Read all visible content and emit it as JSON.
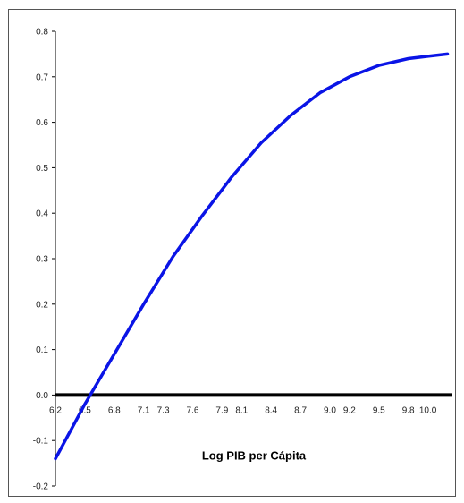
{
  "chart_data": {
    "type": "line",
    "title": "",
    "xlabel": "Log PIB per Cápita",
    "ylabel": "",
    "xlim": [
      6.2,
      10.25
    ],
    "ylim": [
      -0.2,
      0.8
    ],
    "y_ticks": [
      "0.8",
      "0.7",
      "0.6",
      "0.5",
      "0.4",
      "0.3",
      "0.2",
      "0.1",
      "0.0",
      "-0.1",
      "-0.2"
    ],
    "x_ticks": [
      "6.2",
      "6.5",
      "6.8",
      "7.1",
      "7.3",
      "7.6",
      "7.9",
      "8.1",
      "8.4",
      "8.7",
      "9.0",
      "9.2",
      "9.5",
      "9.8",
      "10.0"
    ],
    "grid": false,
    "legend": "none",
    "zero_line": {
      "y": 0.0,
      "color": "#000000"
    },
    "series": [
      {
        "color": "#0a14e6",
        "x": [
          6.2,
          6.5,
          6.8,
          7.1,
          7.4,
          7.7,
          8.0,
          8.3,
          8.6,
          8.9,
          9.2,
          9.5,
          9.8,
          10.0,
          10.2
        ],
        "y": [
          -0.14,
          -0.02,
          0.09,
          0.2,
          0.305,
          0.395,
          0.48,
          0.555,
          0.615,
          0.665,
          0.7,
          0.725,
          0.74,
          0.745,
          0.75
        ]
      }
    ]
  }
}
